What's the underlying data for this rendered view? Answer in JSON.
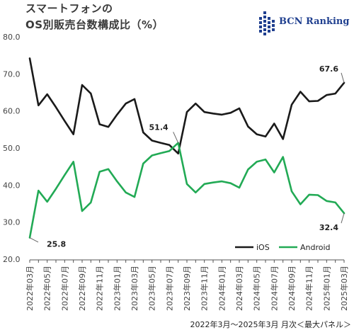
{
  "title_line1": "スマートフォンの",
  "title_line2": "OS別販売台数構成比（%）",
  "logo_text": "BCN Ranking",
  "footer": "2022年3月～2025年3月 月次＜最大パネル＞",
  "colors": {
    "ios": "#1a1a1a",
    "android": "#22aa55",
    "logo": "#1f3f8f"
  },
  "chart_data": {
    "type": "line",
    "ylim": [
      20,
      80
    ],
    "y_ticks": [
      "20.0",
      "30.0",
      "40.0",
      "50.0",
      "60.0",
      "70.0",
      "80.0"
    ],
    "x": [
      "2022年03月",
      "2022年04月",
      "2022年05月",
      "2022年06月",
      "2022年07月",
      "2022年08月",
      "2022年09月",
      "2022年10月",
      "2022年11月",
      "2022年12月",
      "2023年01月",
      "2023年02月",
      "2023年03月",
      "2023年04月",
      "2023年05月",
      "2023年06月",
      "2023年07月",
      "2023年08月",
      "2023年09月",
      "2023年10月",
      "2023年11月",
      "2023年12月",
      "2024年01月",
      "2024年02月",
      "2024年03月",
      "2024年04月",
      "2024年05月",
      "2024年06月",
      "2024年07月",
      "2024年08月",
      "2024年09月",
      "2024年10月",
      "2024年11月",
      "2024年12月",
      "2025年01月",
      "2025年02月",
      "2025年03月"
    ],
    "x_tick_labels": [
      "2022年03月",
      "2022年05月",
      "2022年07月",
      "2022年09月",
      "2022年11月",
      "2023年01月",
      "2023年03月",
      "2023年05月",
      "2023年07月",
      "2023年09月",
      "2023年11月",
      "2024年01月",
      "2024年03月",
      "2024年05月",
      "2024年07月",
      "2024年09月",
      "2024年11月",
      "2025年01月",
      "2025年03月"
    ],
    "series": [
      {
        "name": "iOS",
        "values": [
          74.2,
          61.5,
          64.5,
          61.0,
          57.3,
          53.7,
          67.0,
          64.7,
          56.4,
          55.7,
          59.0,
          62.0,
          63.2,
          54.2,
          52.0,
          51.4,
          50.8,
          48.5,
          59.7,
          62.0,
          59.7,
          59.3,
          59.0,
          59.5,
          60.7,
          55.8,
          53.7,
          53.1,
          56.6,
          52.4,
          61.7,
          65.2,
          62.6,
          62.7,
          64.3,
          64.7,
          67.6
        ]
      },
      {
        "name": "Android",
        "values": [
          25.8,
          38.5,
          35.5,
          39.0,
          42.7,
          46.3,
          33.0,
          35.3,
          43.6,
          44.3,
          41.0,
          38.0,
          36.8,
          45.8,
          48.0,
          48.6,
          49.2,
          51.4,
          40.3,
          38.0,
          40.3,
          40.7,
          41.0,
          40.5,
          39.3,
          44.2,
          46.3,
          46.9,
          43.4,
          47.6,
          38.3,
          34.8,
          37.4,
          37.3,
          35.7,
          35.3,
          32.4
        ]
      }
    ],
    "annotations": [
      {
        "text": "25.8"
      },
      {
        "text": "51.4"
      },
      {
        "text": "67.6"
      },
      {
        "text": "32.4"
      }
    ],
    "legend": {
      "placement": "bottom-right",
      "ios_label": "iOS",
      "android_label": "Android"
    },
    "grid": false
  }
}
